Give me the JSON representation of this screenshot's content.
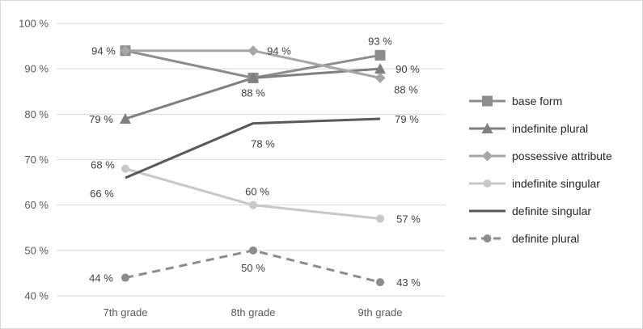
{
  "chart_data": {
    "type": "line",
    "categories": [
      "7th grade",
      "8th grade",
      "9th grade"
    ],
    "ylim": [
      40,
      100
    ],
    "yticks": [
      40,
      50,
      60,
      70,
      80,
      90,
      100
    ],
    "ytick_labels": [
      "40 %",
      "50 %",
      "60 %",
      "70 %",
      "80 %",
      "90 %",
      "100 %"
    ],
    "grid": "horizontal",
    "legend": "right",
    "series": [
      {
        "name": "base form",
        "color": "#8c8c8c",
        "marker": "square",
        "dash": "solid",
        "values": [
          94,
          88,
          93
        ],
        "labels": [
          "94 %",
          "88 %",
          "93 %"
        ]
      },
      {
        "name": "indefinite plural",
        "color": "#7f7f7f",
        "marker": "triangle",
        "dash": "solid",
        "values": [
          79,
          88,
          90
        ],
        "labels": [
          "79 %",
          "",
          "90 %"
        ]
      },
      {
        "name": "possessive attribute",
        "color": "#a6a6a6",
        "marker": "diamond",
        "dash": "solid",
        "values": [
          94,
          94,
          88
        ],
        "labels": [
          "",
          "94 %",
          "88 %"
        ]
      },
      {
        "name": "indefinite singular",
        "color": "#c8c8c8",
        "marker": "circle",
        "dash": "solid",
        "values": [
          68,
          60,
          57
        ],
        "labels": [
          "68 %",
          "60 %",
          "57 %"
        ]
      },
      {
        "name": "definite singular",
        "color": "#595959",
        "marker": "none",
        "dash": "solid",
        "values": [
          66,
          78,
          79
        ],
        "labels": [
          "66 %",
          "78 %",
          "79 %"
        ]
      },
      {
        "name": "definite plural",
        "color": "#8c8c8c",
        "marker": "circle",
        "dash": "dashed",
        "values": [
          44,
          50,
          43
        ],
        "labels": [
          "44 %",
          "50 %",
          "43 %"
        ]
      }
    ]
  }
}
